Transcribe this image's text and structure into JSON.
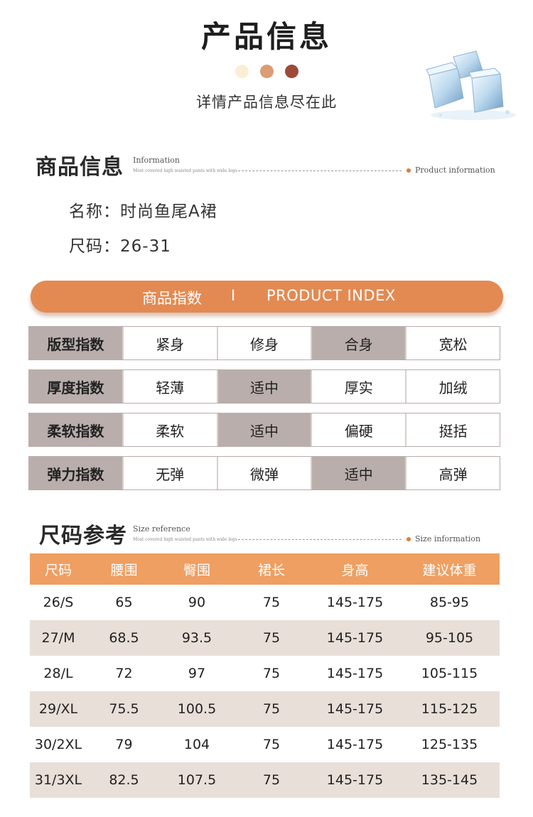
{
  "header": {
    "title": "产品信息",
    "subtitle": "详情产品信息尽在此",
    "dot_colors": [
      "#fbeed6",
      "#dc9c74",
      "#9c4a3a"
    ]
  },
  "info_section": {
    "title": "商品信息",
    "en_title": "Information",
    "en_sub": "Most covered high waisted pants with wide legs",
    "right_label": "Product information",
    "name_line": "名称：时尚鱼尾A裙",
    "size_line": "尺码：26-31"
  },
  "index_banner": {
    "cn": "商品指数",
    "sep": "I",
    "en": "PRODUCT INDEX"
  },
  "index_rows": [
    {
      "label": "版型指数",
      "options": [
        "紧身",
        "修身",
        "合身",
        "宽松"
      ],
      "selected": 2
    },
    {
      "label": "厚度指数",
      "options": [
        "轻薄",
        "适中",
        "厚实",
        "加绒"
      ],
      "selected": 1
    },
    {
      "label": "柔软指数",
      "options": [
        "柔软",
        "适中",
        "偏硬",
        "挺括"
      ],
      "selected": 1
    },
    {
      "label": "弹力指数",
      "options": [
        "无弹",
        "微弹",
        "适中",
        "高弹"
      ],
      "selected": 2
    }
  ],
  "size_section": {
    "title": "尺码参考",
    "en_title": "Size reference",
    "en_sub": "Most covered high waisted pants with wide legs",
    "right_label": "Size information"
  },
  "size_table": {
    "headers": [
      "尺码",
      "腰围",
      "臀围",
      "裙长",
      "身高",
      "建议体重"
    ],
    "rows": [
      [
        "26/S",
        "65",
        "90",
        "75",
        "145-175",
        "85-95"
      ],
      [
        "27/M",
        "68.5",
        "93.5",
        "75",
        "145-175",
        "95-105"
      ],
      [
        "28/L",
        "72",
        "97",
        "75",
        "145-175",
        "105-115"
      ],
      [
        "29/XL",
        "75.5",
        "100.5",
        "75",
        "145-175",
        "115-125"
      ],
      [
        "30/2XL",
        "79",
        "104",
        "75",
        "145-175",
        "125-135"
      ],
      [
        "31/3XL",
        "82.5",
        "107.5",
        "75",
        "145-175",
        "135-145"
      ]
    ]
  },
  "decor": {
    "ice_icon": "ice-cubes-icon"
  }
}
